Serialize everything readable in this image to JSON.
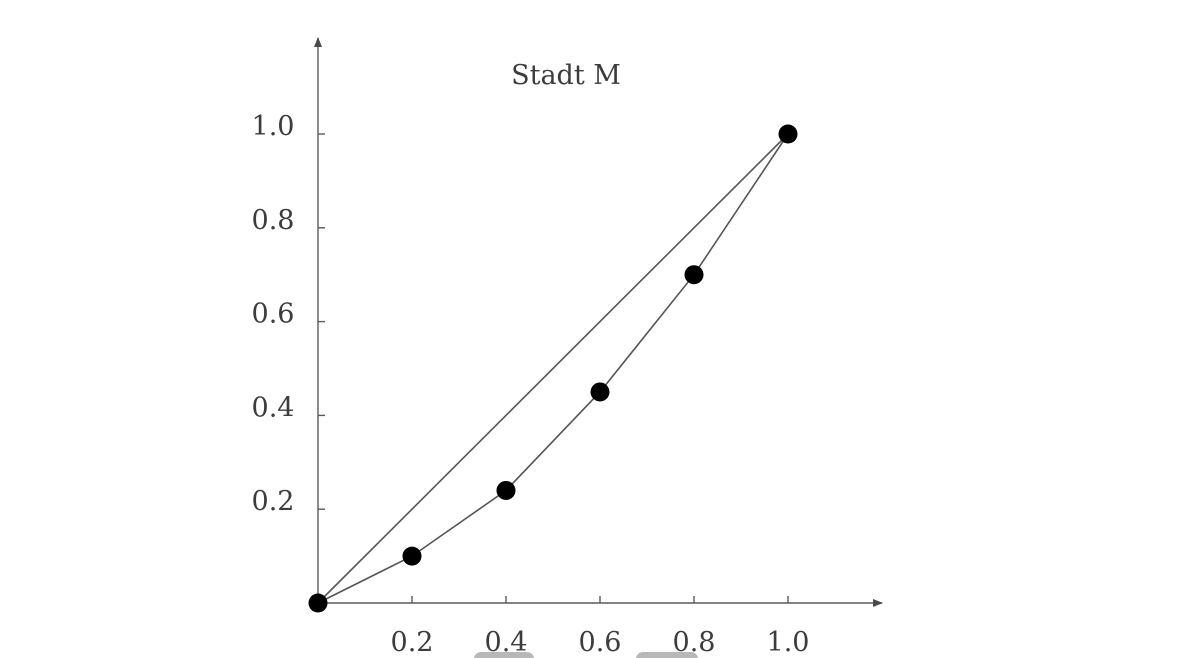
{
  "chart_data": {
    "type": "line",
    "title": "Stadt M",
    "xlabel": "",
    "ylabel": "",
    "xlim": [
      0,
      1.2
    ],
    "ylim": [
      0,
      1.2
    ],
    "x_ticks": [
      0.2,
      0.4,
      0.6,
      0.8,
      1.0
    ],
    "x_tick_labels": [
      "0.2",
      "0.4",
      "0.6",
      "0.8",
      "1.0"
    ],
    "y_ticks": [
      0.2,
      0.4,
      0.6,
      0.8,
      1.0
    ],
    "y_tick_labels": [
      "0.2",
      "0.4",
      "0.6",
      "0.8",
      "1.0"
    ],
    "grid": false,
    "series": [
      {
        "type": "line",
        "x": [
          0,
          1.0
        ],
        "y": [
          0,
          1.0
        ],
        "markers": false
      },
      {
        "type": "line",
        "x": [
          0,
          0.2,
          0.4,
          0.6,
          0.8,
          1.0
        ],
        "y": [
          0,
          0.1,
          0.24,
          0.45,
          0.7,
          1.0
        ],
        "markers": true
      }
    ]
  }
}
